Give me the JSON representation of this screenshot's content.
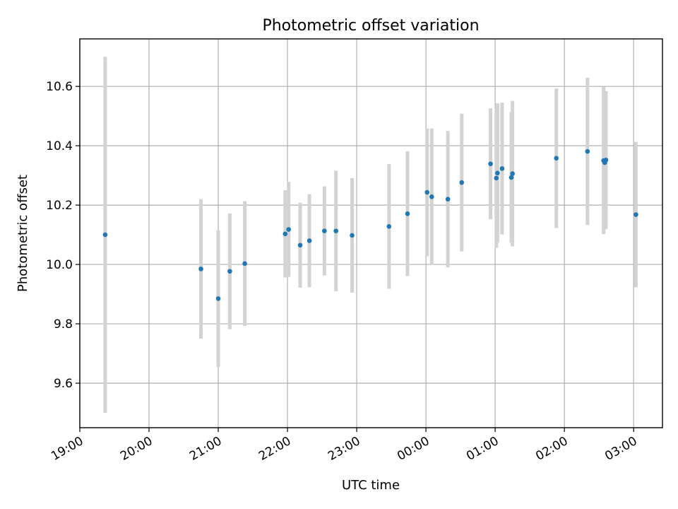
{
  "chart_data": {
    "type": "scatter",
    "title": "Photometric offset variation",
    "xlabel": "UTC time",
    "ylabel": "Photometric offset",
    "x_axis_kind": "time",
    "xlim": [
      "19:00",
      "03:25"
    ],
    "ylim": [
      9.45,
      10.76
    ],
    "x_ticks": [
      "19:00",
      "20:00",
      "21:00",
      "22:00",
      "23:00",
      "00:00",
      "01:00",
      "02:00",
      "03:00"
    ],
    "y_ticks": [
      9.6,
      9.8,
      10.0,
      10.2,
      10.4,
      10.6
    ],
    "grid": true,
    "errorbar_color": "#d3d3d3",
    "point_color": "#1f77b4",
    "points": [
      {
        "x": "19:22",
        "y": 10.1,
        "yerr": 0.6
      },
      {
        "x": "20:45",
        "y": 9.985,
        "yerr": 0.235
      },
      {
        "x": "21:00",
        "y": 9.885,
        "yerr": 0.23
      },
      {
        "x": "21:10",
        "y": 9.977,
        "yerr": 0.195
      },
      {
        "x": "21:23",
        "y": 10.003,
        "yerr": 0.21
      },
      {
        "x": "21:58",
        "y": 10.103,
        "yerr": 0.147
      },
      {
        "x": "22:01",
        "y": 10.118,
        "yerr": 0.16
      },
      {
        "x": "22:11",
        "y": 10.065,
        "yerr": 0.143
      },
      {
        "x": "22:19",
        "y": 10.08,
        "yerr": 0.157
      },
      {
        "x": "22:32",
        "y": 10.113,
        "yerr": 0.15
      },
      {
        "x": "22:42",
        "y": 10.113,
        "yerr": 0.203
      },
      {
        "x": "22:56",
        "y": 10.098,
        "yerr": 0.193
      },
      {
        "x": "23:28",
        "y": 10.128,
        "yerr": 0.21
      },
      {
        "x": "23:44",
        "y": 10.171,
        "yerr": 0.21
      },
      {
        "x": "00:01",
        "y": 10.243,
        "yerr": 0.215
      },
      {
        "x": "00:05",
        "y": 10.228,
        "yerr": 0.23
      },
      {
        "x": "00:19",
        "y": 10.22,
        "yerr": 0.23
      },
      {
        "x": "00:31",
        "y": 10.276,
        "yerr": 0.232
      },
      {
        "x": "00:56",
        "y": 10.339,
        "yerr": 0.187
      },
      {
        "x": "01:01",
        "y": 10.291,
        "yerr": 0.235
      },
      {
        "x": "01:02",
        "y": 10.308,
        "yerr": 0.235
      },
      {
        "x": "01:06",
        "y": 10.323,
        "yerr": 0.222
      },
      {
        "x": "01:14",
        "y": 10.293,
        "yerr": 0.22
      },
      {
        "x": "01:15",
        "y": 10.306,
        "yerr": 0.245
      },
      {
        "x": "01:53",
        "y": 10.358,
        "yerr": 0.235
      },
      {
        "x": "02:20",
        "y": 10.381,
        "yerr": 0.248
      },
      {
        "x": "02:34",
        "y": 10.35,
        "yerr": 0.248
      },
      {
        "x": "02:35",
        "y": 10.343,
        "yerr": 0.225
      },
      {
        "x": "02:36",
        "y": 10.352,
        "yerr": 0.232
      },
      {
        "x": "03:02",
        "y": 10.168,
        "yerr": 0.245
      }
    ]
  }
}
